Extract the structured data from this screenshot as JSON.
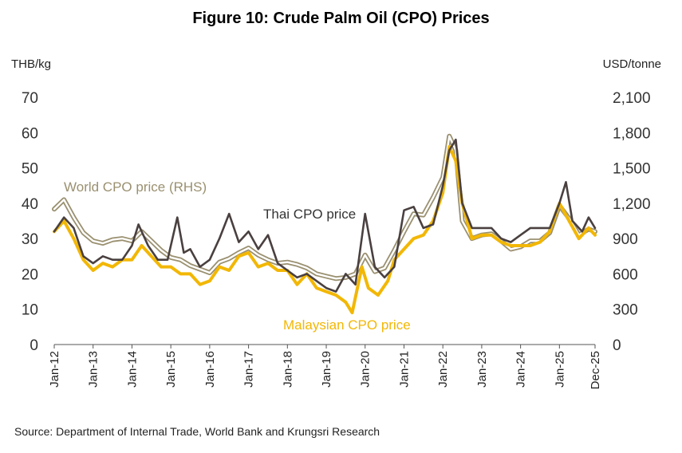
{
  "title": "Figure 10: Crude Palm Oil (CPO) Prices",
  "left_unit": "THB/kg",
  "right_unit": "USD/tonne",
  "source": "Source: Department of Internal Trade, World Bank and Krungsri Research",
  "chart_data": {
    "type": "line",
    "title": "Figure 10: Crude Palm Oil (CPO) Prices",
    "ylabel_left": "THB/kg",
    "ylabel_right": "USD/tonne",
    "ylim_left": [
      0,
      70
    ],
    "ylim_right": [
      0,
      2100
    ],
    "yticks_left": [
      "0",
      "10",
      "20",
      "30",
      "40",
      "50",
      "60",
      "70"
    ],
    "yticks_right": [
      "0",
      "300",
      "600",
      "900",
      "1,200",
      "1,500",
      "1,800",
      "2,100"
    ],
    "xticks": [
      "Jan-12",
      "Jan-13",
      "Jan-14",
      "Jan-15",
      "Jan-16",
      "Jan-17",
      "Jan-18",
      "Jan-19",
      "Jan-20",
      "Jan-21",
      "Jan-22",
      "Jan-23",
      "Jan-24",
      "Jan-25",
      "Dec-25"
    ],
    "grid": false,
    "series": [
      {
        "name": "World CPO price (RHS)",
        "axis": "right",
        "color": "#9a9070",
        "x": [
          "2012-01",
          "2012-04",
          "2012-07",
          "2012-10",
          "2013-01",
          "2013-04",
          "2013-07",
          "2013-10",
          "2014-01",
          "2014-04",
          "2014-07",
          "2014-10",
          "2015-01",
          "2015-04",
          "2015-07",
          "2015-10",
          "2016-01",
          "2016-04",
          "2016-07",
          "2016-10",
          "2017-01",
          "2017-04",
          "2017-07",
          "2017-10",
          "2018-01",
          "2018-04",
          "2018-07",
          "2018-10",
          "2019-01",
          "2019-04",
          "2019-07",
          "2019-10",
          "2020-01",
          "2020-04",
          "2020-07",
          "2020-10",
          "2021-01",
          "2021-04",
          "2021-07",
          "2021-10",
          "2022-01",
          "2022-03",
          "2022-05",
          "2022-07",
          "2022-10",
          "2023-01",
          "2023-04",
          "2023-07",
          "2023-10",
          "2024-01",
          "2024-04",
          "2024-07",
          "2024-10",
          "2025-01",
          "2025-04",
          "2025-07",
          "2025-10",
          "2025-12"
        ],
        "values": [
          1150,
          1230,
          1080,
          950,
          880,
          860,
          890,
          900,
          880,
          960,
          880,
          800,
          740,
          720,
          670,
          640,
          610,
          700,
          730,
          780,
          820,
          760,
          720,
          690,
          700,
          680,
          650,
          600,
          580,
          560,
          570,
          600,
          760,
          620,
          650,
          800,
          960,
          1110,
          1100,
          1250,
          1420,
          1770,
          1650,
          1050,
          900,
          930,
          940,
          880,
          810,
          830,
          880,
          880,
          950,
          1180,
          1070,
          930,
          980,
          960
        ]
      },
      {
        "name": "Malaysian CPO price",
        "axis": "left",
        "color": "#f2b705",
        "x": [
          "2012-01",
          "2012-04",
          "2012-07",
          "2012-10",
          "2013-01",
          "2013-04",
          "2013-07",
          "2013-10",
          "2014-01",
          "2014-04",
          "2014-07",
          "2014-10",
          "2015-01",
          "2015-04",
          "2015-07",
          "2015-10",
          "2016-01",
          "2016-04",
          "2016-07",
          "2016-10",
          "2017-01",
          "2017-04",
          "2017-07",
          "2017-10",
          "2018-01",
          "2018-04",
          "2018-07",
          "2018-10",
          "2019-01",
          "2019-04",
          "2019-07",
          "2019-09",
          "2019-12",
          "2020-02",
          "2020-05",
          "2020-08",
          "2020-10",
          "2021-01",
          "2021-04",
          "2021-07",
          "2021-10",
          "2022-01",
          "2022-03",
          "2022-05",
          "2022-07",
          "2022-10",
          "2023-01",
          "2023-04",
          "2023-07",
          "2023-10",
          "2024-01",
          "2024-04",
          "2024-07",
          "2024-10",
          "2025-01",
          "2025-04",
          "2025-07",
          "2025-10",
          "2025-12"
        ],
        "values": [
          32,
          35,
          30,
          24,
          21,
          23,
          22,
          24,
          24,
          28,
          25,
          22,
          22,
          20,
          20,
          17,
          18,
          22,
          21,
          25,
          26,
          22,
          23,
          21,
          21,
          17,
          20,
          16,
          15,
          14,
          12,
          9,
          22,
          16,
          14,
          18,
          24,
          27,
          30,
          31,
          35,
          43,
          56,
          52,
          40,
          30,
          31,
          31,
          29,
          28,
          28,
          28,
          29,
          32,
          40,
          35,
          30,
          33,
          31
        ]
      },
      {
        "name": "Thai CPO price",
        "axis": "left",
        "color": "#4a4040",
        "x": [
          "2012-01",
          "2012-04",
          "2012-07",
          "2012-10",
          "2013-01",
          "2013-04",
          "2013-07",
          "2013-10",
          "2014-01",
          "2014-03",
          "2014-06",
          "2014-09",
          "2014-12",
          "2015-03",
          "2015-05",
          "2015-07",
          "2015-10",
          "2016-01",
          "2016-04",
          "2016-07",
          "2016-10",
          "2017-01",
          "2017-04",
          "2017-07",
          "2017-10",
          "2018-01",
          "2018-04",
          "2018-07",
          "2018-10",
          "2019-01",
          "2019-04",
          "2019-07",
          "2019-10",
          "2020-01",
          "2020-04",
          "2020-07",
          "2020-10",
          "2021-01",
          "2021-04",
          "2021-07",
          "2021-10",
          "2022-01",
          "2022-03",
          "2022-05",
          "2022-07",
          "2022-10",
          "2023-01",
          "2023-04",
          "2023-07",
          "2023-10",
          "2024-01",
          "2024-04",
          "2024-07",
          "2024-10",
          "2025-01",
          "2025-03",
          "2025-05",
          "2025-08",
          "2025-10",
          "2025-12"
        ],
        "values": [
          32,
          36,
          33,
          25,
          23,
          25,
          24,
          24,
          28,
          34,
          28,
          24,
          24,
          36,
          26,
          27,
          22,
          24,
          30,
          37,
          29,
          32,
          27,
          31,
          23,
          21,
          19,
          20,
          18,
          16,
          15,
          20,
          17,
          37,
          22,
          19,
          22,
          38,
          39,
          33,
          34,
          45,
          55,
          58,
          40,
          33,
          33,
          33,
          30,
          29,
          31,
          33,
          33,
          33,
          40,
          46,
          35,
          32,
          36,
          33
        ]
      }
    ],
    "annotations": [
      "World CPO price (RHS)",
      "Thai CPO price",
      "Malaysian CPO price"
    ]
  }
}
